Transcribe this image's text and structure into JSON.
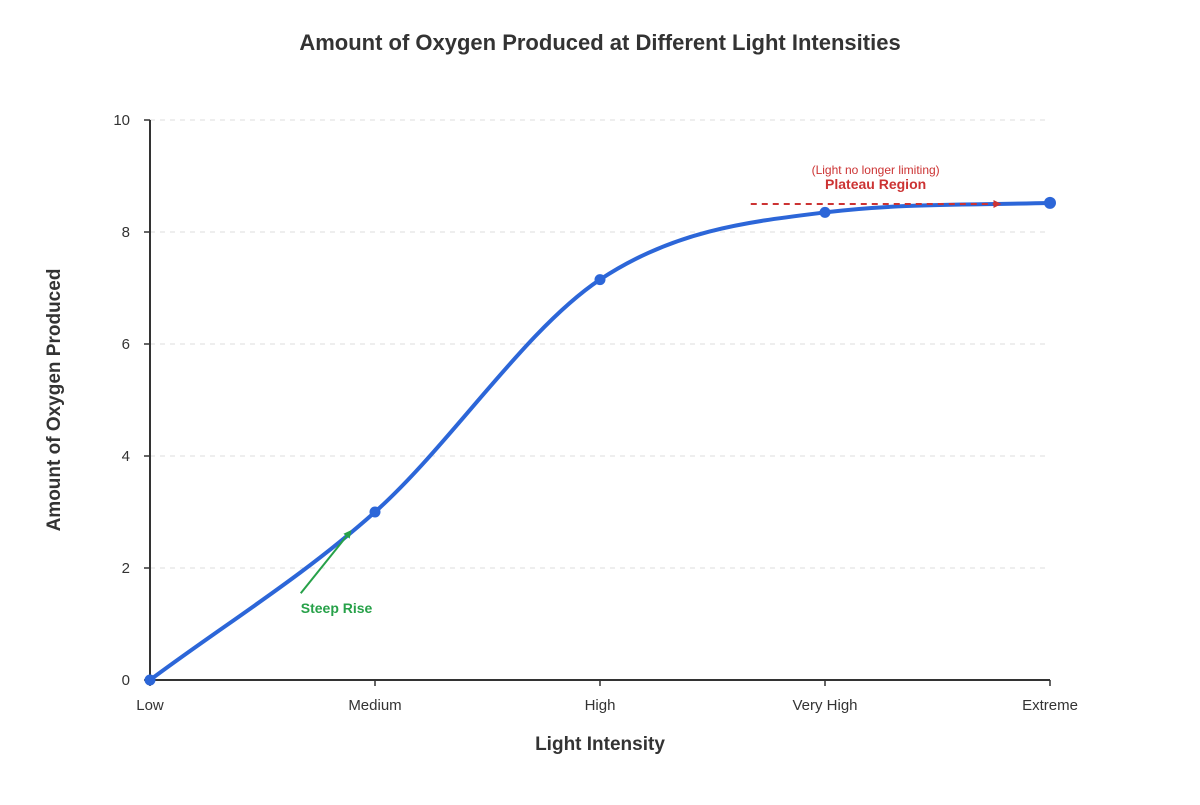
{
  "chart_data": {
    "type": "line",
    "title": "Amount of Oxygen Produced at Different Light Intensities",
    "xlabel": "Light Intensity",
    "ylabel": "Amount of Oxygen Produced",
    "categories": [
      "Low",
      "Medium",
      "High",
      "Very High",
      "Extreme"
    ],
    "series": [
      {
        "values": [
          0,
          3,
          7.15,
          8.35,
          8.52
        ]
      }
    ],
    "ylim": [
      0,
      10
    ],
    "yticks": [
      0,
      2,
      4,
      6,
      8,
      10
    ],
    "grid": true,
    "annotations": {
      "steep_rise": {
        "label": "Steep Rise",
        "from": {
          "x": 0.67,
          "y": 1.55
        },
        "to": {
          "x": 0.89,
          "y": 2.65
        }
      },
      "plateau": {
        "label": "Plateau Region",
        "note": "(Light no longer limiting)",
        "from": {
          "x": 2.67,
          "y": 8.5
        },
        "to": {
          "x": 3.78,
          "y": 8.5
        }
      }
    }
  },
  "colors": {
    "line": "#2c66d8",
    "steep_rise": "#27a149",
    "plateau": "#cc3333"
  }
}
